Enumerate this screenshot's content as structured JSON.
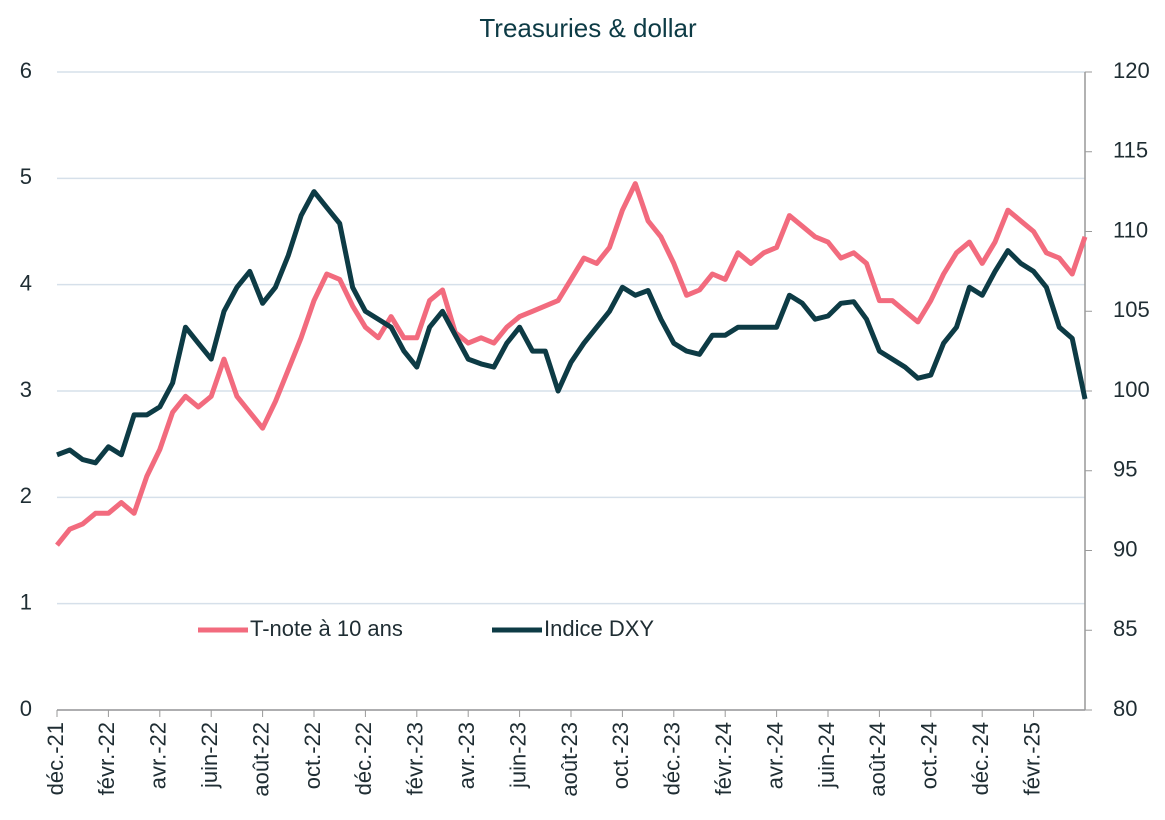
{
  "chart_data": {
    "type": "line",
    "title": "Treasuries & dollar",
    "categories": [
      "déc.-21",
      null,
      null,
      null,
      "févr.-22",
      null,
      null,
      null,
      "avr.-22",
      null,
      null,
      null,
      "juin-22",
      null,
      null,
      null,
      "août-22",
      null,
      null,
      null,
      "oct.-22",
      null,
      null,
      null,
      "déc.-22",
      null,
      null,
      null,
      "févr.-23",
      null,
      null,
      null,
      "avr.-23",
      null,
      null,
      null,
      "juin-23",
      null,
      null,
      null,
      "août-23",
      null,
      null,
      null,
      "oct.-23",
      null,
      null,
      null,
      "déc.-23",
      null,
      null,
      null,
      "févr.-24",
      null,
      null,
      null,
      "avr.-24",
      null,
      null,
      null,
      "juin-24",
      null,
      null,
      null,
      "août-24",
      null,
      null,
      null,
      "oct.-24",
      null,
      null,
      null,
      "déc.-24",
      null,
      null,
      null,
      "févr.-25",
      null,
      null,
      null,
      null
    ],
    "series": [
      {
        "name": "T-note à 10 ans",
        "color": "#f26b7e",
        "axis": "y",
        "values": [
          1.55,
          1.7,
          1.75,
          1.85,
          1.85,
          1.95,
          1.85,
          2.2,
          2.45,
          2.8,
          2.95,
          2.85,
          2.95,
          3.3,
          2.95,
          2.8,
          2.65,
          2.9,
          3.2,
          3.5,
          3.85,
          4.1,
          4.05,
          3.8,
          3.6,
          3.5,
          3.7,
          3.5,
          3.5,
          3.85,
          3.95,
          3.55,
          3.45,
          3.5,
          3.45,
          3.6,
          3.7,
          3.75,
          3.8,
          3.85,
          4.05,
          4.25,
          4.2,
          4.35,
          4.7,
          4.95,
          4.6,
          4.45,
          4.2,
          3.9,
          3.95,
          4.1,
          4.05,
          4.3,
          4.2,
          4.3,
          4.35,
          4.65,
          4.55,
          4.45,
          4.4,
          4.25,
          4.3,
          4.2,
          3.85,
          3.85,
          3.75,
          3.65,
          3.85,
          4.1,
          4.3,
          4.4,
          4.2,
          4.4,
          4.7,
          4.6,
          4.5,
          4.3,
          4.25,
          4.1,
          4.45
        ]
      },
      {
        "name": "Indice DXY",
        "color": "#0d3b45",
        "axis": "y2",
        "values": [
          96,
          96.3,
          95.7,
          95.5,
          96.5,
          96,
          98.5,
          98.5,
          99,
          100.5,
          104,
          103,
          102,
          105,
          106.5,
          107.5,
          105.5,
          106.5,
          108.5,
          111,
          112.5,
          111.5,
          110.5,
          106.5,
          105,
          104.5,
          104,
          102.5,
          101.5,
          104,
          105,
          103.5,
          102,
          101.7,
          101.5,
          103,
          104,
          102.5,
          102.5,
          100,
          101.8,
          103,
          104,
          105,
          106.5,
          106,
          106.3,
          104.5,
          103,
          102.5,
          102.3,
          103.5,
          103.5,
          104,
          104,
          104,
          104,
          106,
          105.5,
          104.5,
          104.7,
          105.5,
          105.6,
          104.5,
          102.5,
          102,
          101.5,
          100.8,
          101,
          103,
          104,
          106.5,
          106,
          107.5,
          108.8,
          108,
          107.5,
          106.5,
          104,
          103.3,
          99.5
        ]
      }
    ],
    "ylim": [
      0,
      6
    ],
    "yticks": [
      0,
      1,
      2,
      3,
      4,
      5,
      6
    ],
    "y2lim": [
      80,
      120
    ],
    "y2ticks": [
      80,
      85,
      90,
      95,
      100,
      105,
      110,
      115,
      120
    ],
    "grid": true
  }
}
